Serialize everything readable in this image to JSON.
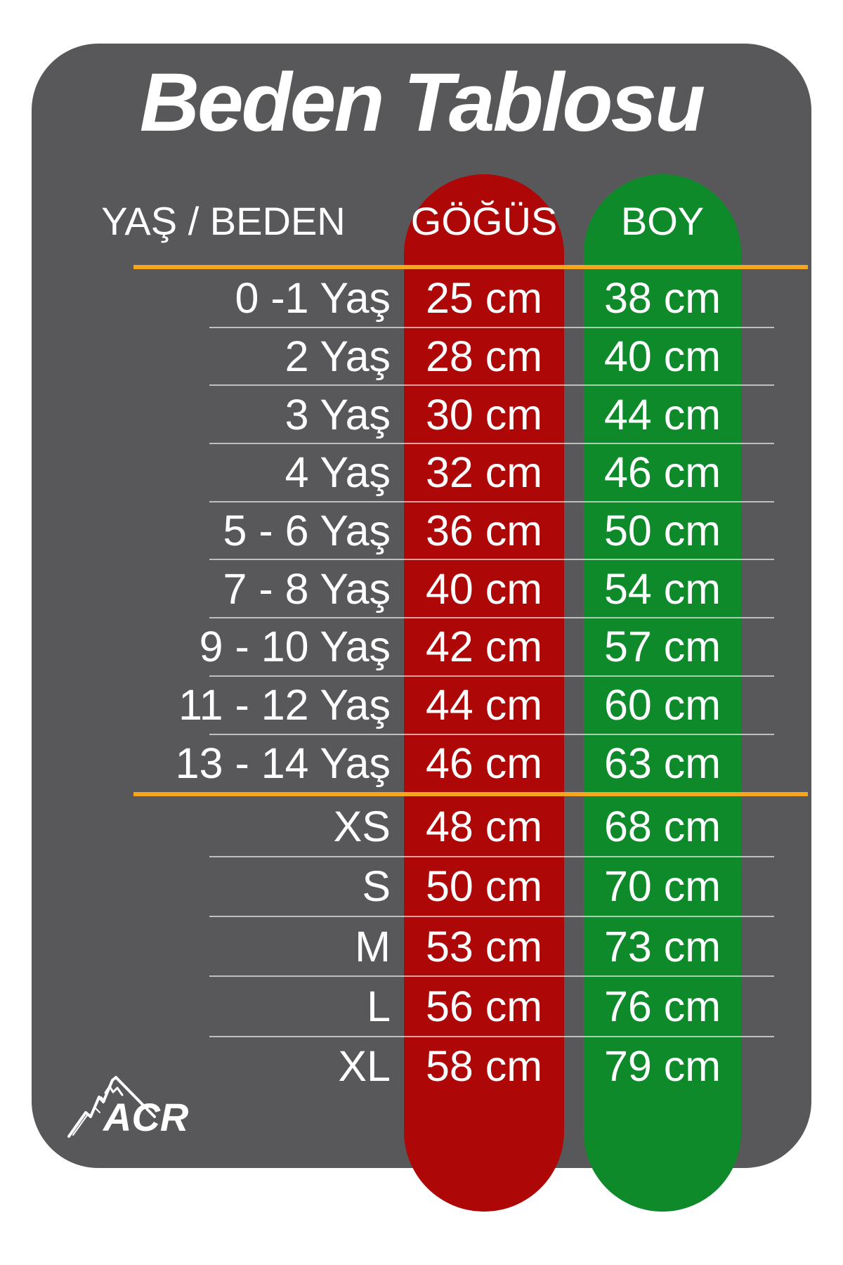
{
  "title": "Beden Tablosu",
  "table": {
    "headers": {
      "label": "YAŞ / BEDEN",
      "chest": "GÖĞÜS",
      "height": "BOY"
    },
    "child_rows": [
      {
        "label": "0 -1 Yaş",
        "chest": "25 cm",
        "height": "38 cm"
      },
      {
        "label": "2 Yaş",
        "chest": "28 cm",
        "height": "40 cm"
      },
      {
        "label": "3 Yaş",
        "chest": "30 cm",
        "height": "44 cm"
      },
      {
        "label": "4 Yaş",
        "chest": "32 cm",
        "height": "46 cm"
      },
      {
        "label": "5 - 6 Yaş",
        "chest": "36 cm",
        "height": "50 cm"
      },
      {
        "label": "7 - 8 Yaş",
        "chest": "40 cm",
        "height": "54 cm"
      },
      {
        "label": "9 - 10 Yaş",
        "chest": "42 cm",
        "height": "57 cm"
      },
      {
        "label": "11 - 12 Yaş",
        "chest": "44 cm",
        "height": "60 cm"
      },
      {
        "label": "13 - 14 Yaş",
        "chest": "46 cm",
        "height": "63 cm"
      }
    ],
    "adult_rows": [
      {
        "label": "XS",
        "chest": "48 cm",
        "height": "68 cm"
      },
      {
        "label": "S",
        "chest": "50 cm",
        "height": "70 cm"
      },
      {
        "label": "M",
        "chest": "53 cm",
        "height": "73 cm"
      },
      {
        "label": "L",
        "chest": "56 cm",
        "height": "76 cm"
      },
      {
        "label": "XL",
        "chest": "58 cm",
        "height": "79 cm"
      }
    ]
  },
  "logo": {
    "text": "ACR"
  },
  "colors": {
    "card_gray": "#58585A",
    "chest_column_red": "#AE0707",
    "height_column_green": "#0E8A2B",
    "divider_orange": "#F5A61E",
    "text_white": "#FFFFFF"
  },
  "chart_data": {
    "type": "table",
    "title": "Beden Tablosu",
    "columns": [
      "YAŞ / BEDEN",
      "GÖĞÜS",
      "BOY"
    ],
    "rows": [
      [
        "0 -1 Yaş",
        "25 cm",
        "38 cm"
      ],
      [
        "2 Yaş",
        "28 cm",
        "40 cm"
      ],
      [
        "3 Yaş",
        "30 cm",
        "44 cm"
      ],
      [
        "4 Yaş",
        "32 cm",
        "46 cm"
      ],
      [
        "5 - 6 Yaş",
        "36 cm",
        "50 cm"
      ],
      [
        "7 - 8 Yaş",
        "40 cm",
        "54 cm"
      ],
      [
        "9 - 10 Yaş",
        "42 cm",
        "57 cm"
      ],
      [
        "11 - 12 Yaş",
        "44 cm",
        "60 cm"
      ],
      [
        "13 - 14 Yaş",
        "46 cm",
        "63 cm"
      ],
      [
        "XS",
        "48 cm",
        "68 cm"
      ],
      [
        "S",
        "50 cm",
        "70 cm"
      ],
      [
        "M",
        "53 cm",
        "73 cm"
      ],
      [
        "L",
        "56 cm",
        "76 cm"
      ],
      [
        "XL",
        "58 cm",
        "79 cm"
      ]
    ],
    "group_break_after_row": 9,
    "notes": "age sizes above orange divider, letter sizes below; chest values on red column, height values on green column"
  }
}
